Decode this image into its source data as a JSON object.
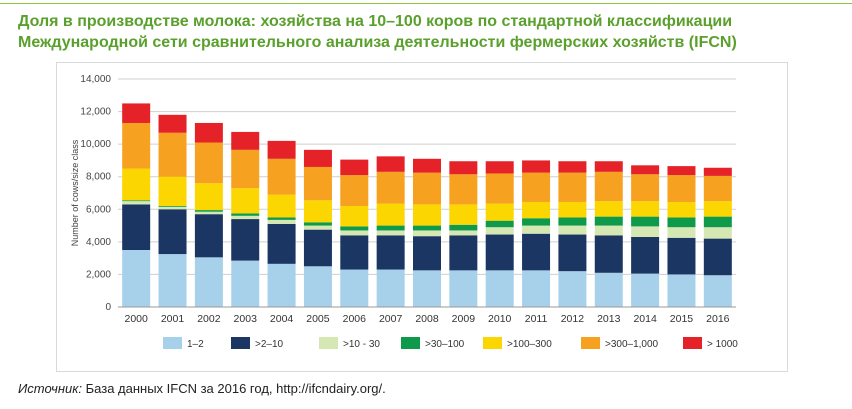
{
  "header": {
    "title_line1": "Доля в производстве молока: хозяйства на 10–100 коров по стандартной классификации",
    "title_line2": "Международной сети сравнительного анализа деятельности фермерских хозяйств (IFCN)"
  },
  "footer": {
    "source_label": "Источник:",
    "source_text": " База данных IFCN за 2016 год, http://ifcndairy.org/."
  },
  "chart_data": {
    "type": "bar",
    "stacked": true,
    "title": "",
    "xlabel": "",
    "ylabel": "Number of cows/size class",
    "ylim": [
      0,
      14000
    ],
    "yticks": [
      0,
      2000,
      4000,
      6000,
      8000,
      10000,
      12000,
      14000
    ],
    "ytick_labels": [
      "0",
      "2,000",
      "4,000",
      "6,000",
      "8,000",
      "10,000",
      "12,000",
      "14,000"
    ],
    "grid": true,
    "legend_position": "bottom",
    "categories": [
      "2000",
      "2001",
      "2002",
      "2003",
      "2004",
      "2005",
      "2006",
      "2007",
      "2008",
      "2009",
      "2010",
      "2011",
      "2012",
      "2013",
      "2014",
      "2015",
      "2016"
    ],
    "series": [
      {
        "name": "1–2",
        "color": "#a7d1ea",
        "values": [
          3500,
          3250,
          3050,
          2850,
          2650,
          2500,
          2300,
          2300,
          2250,
          2250,
          2250,
          2250,
          2200,
          2100,
          2050,
          2000,
          1950
        ]
      },
      {
        "name": ">2–10",
        "color": "#1c3664",
        "values": [
          2800,
          2750,
          2650,
          2550,
          2450,
          2250,
          2100,
          2100,
          2100,
          2150,
          2200,
          2250,
          2250,
          2300,
          2250,
          2250,
          2250
        ]
      },
      {
        "name": ">10 - 30",
        "color": "#d5e7b2",
        "values": [
          200,
          150,
          150,
          200,
          250,
          250,
          300,
          300,
          350,
          300,
          450,
          500,
          550,
          600,
          650,
          650,
          700
        ]
      },
      {
        "name": ">30–100",
        "color": "#0e9a4a",
        "values": [
          50,
          50,
          100,
          150,
          150,
          200,
          250,
          300,
          300,
          350,
          400,
          450,
          500,
          550,
          600,
          600,
          650
        ]
      },
      {
        "name": ">100–300",
        "color": "#fbd600",
        "values": [
          1950,
          1800,
          1650,
          1550,
          1400,
          1350,
          1250,
          1350,
          1300,
          1250,
          1050,
          1000,
          950,
          950,
          950,
          950,
          950
        ]
      },
      {
        "name": ">300–1,000",
        "color": "#f6a11f",
        "values": [
          2800,
          2700,
          2500,
          2350,
          2200,
          2050,
          1900,
          1950,
          1950,
          1850,
          1850,
          1800,
          1800,
          1800,
          1650,
          1650,
          1550
        ]
      },
      {
        "name": "> 1000",
        "color": "#e42227",
        "values": [
          1200,
          1100,
          1200,
          1100,
          1100,
          1050,
          950,
          950,
          850,
          800,
          750,
          750,
          700,
          650,
          550,
          550,
          500
        ]
      }
    ]
  }
}
